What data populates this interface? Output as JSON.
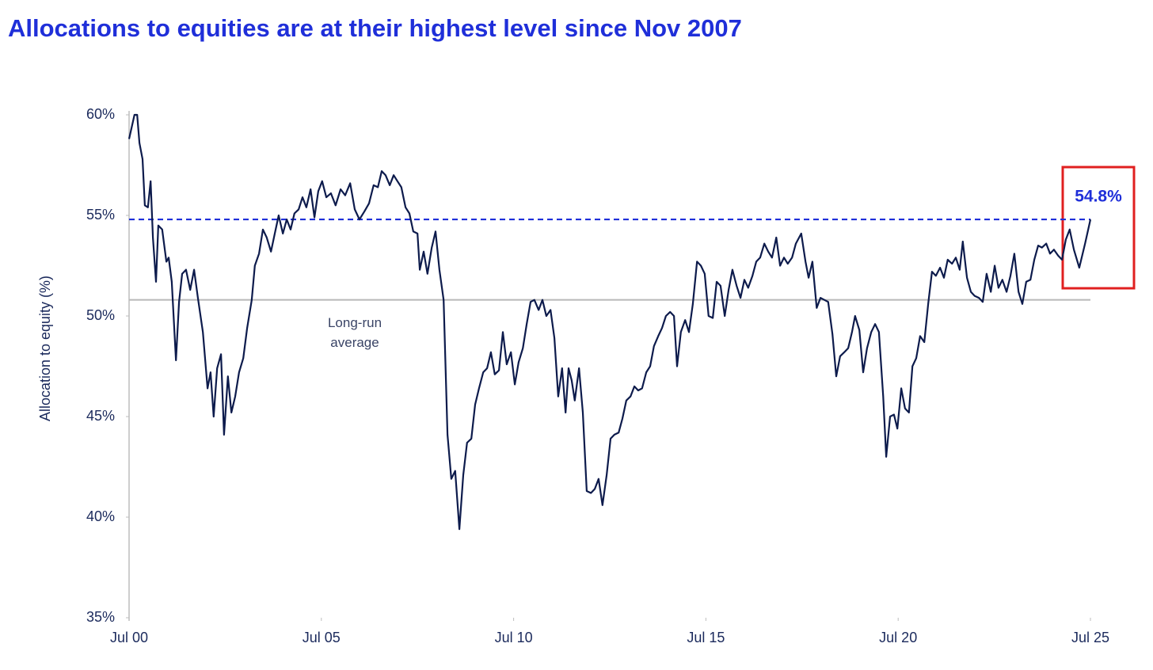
{
  "chart_data": {
    "type": "line",
    "title": "Allocations to equities are at their highest level since Nov 2007",
    "y_label": "Allocation to equity (%)",
    "xlim": [
      2000.5,
      2025.5
    ],
    "xticks": [
      {
        "value": 2000.5,
        "label": "Jul 00"
      },
      {
        "value": 2005.5,
        "label": "Jul 05"
      },
      {
        "value": 2010.5,
        "label": "Jul 10"
      },
      {
        "value": 2015.5,
        "label": "Jul 15"
      },
      {
        "value": 2020.5,
        "label": "Jul 20"
      },
      {
        "value": 2025.5,
        "label": "Jul 25"
      }
    ],
    "ylim": [
      35,
      60
    ],
    "yticks": [
      {
        "value": 35,
        "label": "35%"
      },
      {
        "value": 40,
        "label": "40%"
      },
      {
        "value": 45,
        "label": "45%"
      },
      {
        "value": 50,
        "label": "50%"
      },
      {
        "value": 55,
        "label": "55%"
      },
      {
        "value": 60,
        "label": "60%"
      }
    ],
    "grid": false,
    "average_line": {
      "value": 50.8,
      "label": [
        "Long-run",
        "average"
      ],
      "color": "#b8b8b8"
    },
    "latest_line": {
      "value": 54.8,
      "label": "54.8%",
      "color": "#1f2fd9"
    },
    "series": [
      {
        "name": "Allocation to equity",
        "color": "#0d1b4c",
        "x": [
          2000.5,
          2000.64,
          2000.71,
          2000.77,
          2000.85,
          2000.91,
          2000.99,
          2001.06,
          2001.12,
          2001.2,
          2001.26,
          2001.36,
          2001.47,
          2001.53,
          2001.61,
          2001.72,
          2001.8,
          2001.88,
          2001.98,
          2002.09,
          2002.19,
          2002.29,
          2002.42,
          2002.54,
          2002.62,
          2002.7,
          2002.79,
          2002.89,
          2002.97,
          2003.07,
          2003.16,
          2003.26,
          2003.36,
          2003.47,
          2003.57,
          2003.69,
          2003.77,
          2003.88,
          2003.98,
          2004.08,
          2004.19,
          2004.29,
          2004.39,
          2004.5,
          2004.6,
          2004.7,
          2004.8,
          2004.91,
          2005.01,
          2005.11,
          2005.22,
          2005.32,
          2005.42,
          2005.52,
          2005.63,
          2005.75,
          2005.87,
          2006.0,
          2006.12,
          2006.25,
          2006.37,
          2006.49,
          2006.62,
          2006.74,
          2006.86,
          2006.97,
          2007.07,
          2007.17,
          2007.28,
          2007.38,
          2007.48,
          2007.58,
          2007.69,
          2007.79,
          2007.89,
          2008.0,
          2008.06,
          2008.16,
          2008.26,
          2008.37,
          2008.47,
          2008.57,
          2008.68,
          2008.78,
          2008.88,
          2008.98,
          2009.09,
          2009.19,
          2009.29,
          2009.4,
          2009.5,
          2009.6,
          2009.71,
          2009.81,
          2009.91,
          2010.01,
          2010.12,
          2010.22,
          2010.32,
          2010.43,
          2010.53,
          2010.63,
          2010.74,
          2010.84,
          2010.94,
          2011.04,
          2011.15,
          2011.25,
          2011.35,
          2011.46,
          2011.56,
          2011.66,
          2011.76,
          2011.85,
          2011.93,
          2012.01,
          2012.09,
          2012.2,
          2012.3,
          2012.4,
          2012.51,
          2012.61,
          2012.71,
          2012.81,
          2012.92,
          2013.02,
          2013.12,
          2013.23,
          2013.33,
          2013.43,
          2013.54,
          2013.64,
          2013.74,
          2013.84,
          2013.95,
          2014.05,
          2014.15,
          2014.26,
          2014.36,
          2014.46,
          2014.57,
          2014.67,
          2014.75,
          2014.85,
          2014.96,
          2015.06,
          2015.16,
          2015.27,
          2015.37,
          2015.47,
          2015.57,
          2015.68,
          2015.78,
          2015.88,
          2015.99,
          2016.09,
          2016.19,
          2016.3,
          2016.4,
          2016.5,
          2016.6,
          2016.71,
          2016.81,
          2016.91,
          2017.02,
          2017.12,
          2017.22,
          2017.33,
          2017.43,
          2017.53,
          2017.63,
          2017.74,
          2017.84,
          2017.98,
          2018.09,
          2018.17,
          2018.27,
          2018.38,
          2018.48,
          2018.58,
          2018.68,
          2018.79,
          2018.89,
          2018.99,
          2019.1,
          2019.2,
          2019.3,
          2019.38,
          2019.49,
          2019.59,
          2019.69,
          2019.8,
          2019.9,
          2020.0,
          2020.11,
          2020.19,
          2020.29,
          2020.39,
          2020.48,
          2020.58,
          2020.68,
          2020.78,
          2020.87,
          2020.97,
          2021.07,
          2021.18,
          2021.28,
          2021.38,
          2021.48,
          2021.59,
          2021.69,
          2021.79,
          2021.9,
          2022.0,
          2022.1,
          2022.18,
          2022.29,
          2022.39,
          2022.49,
          2022.6,
          2022.7,
          2022.8,
          2022.91,
          2023.01,
          2023.11,
          2023.21,
          2023.32,
          2023.42,
          2023.52,
          2023.63,
          2023.73,
          2023.83,
          2023.94,
          2024.04,
          2024.14,
          2024.24,
          2024.35,
          2024.45,
          2024.55,
          2024.66,
          2024.76,
          2024.86,
          2024.96,
          2025.07,
          2025.21,
          2025.36,
          2025.5
        ],
        "values": [
          58.8,
          60.0,
          60.0,
          58.6,
          57.8,
          55.5,
          55.4,
          56.7,
          53.9,
          51.7,
          54.5,
          54.3,
          52.7,
          52.9,
          51.7,
          47.8,
          50.7,
          52.1,
          52.3,
          51.3,
          52.3,
          50.9,
          49.2,
          46.4,
          47.2,
          45.0,
          47.4,
          48.1,
          44.1,
          47.0,
          45.2,
          46.0,
          47.2,
          47.9,
          49.4,
          50.8,
          52.5,
          53.1,
          54.3,
          53.9,
          53.2,
          54.1,
          55.0,
          54.1,
          54.8,
          54.3,
          55.1,
          55.3,
          55.9,
          55.4,
          56.3,
          54.9,
          56.2,
          56.7,
          55.9,
          56.1,
          55.5,
          56.3,
          56.0,
          56.6,
          55.3,
          54.8,
          55.2,
          55.6,
          56.5,
          56.4,
          57.2,
          57.0,
          56.5,
          57.0,
          56.7,
          56.4,
          55.4,
          55.1,
          54.2,
          54.1,
          52.3,
          53.2,
          52.1,
          53.4,
          54.2,
          52.3,
          50.8,
          44.1,
          41.9,
          42.3,
          39.4,
          42.1,
          43.7,
          43.9,
          45.6,
          46.4,
          47.2,
          47.4,
          48.2,
          47.1,
          47.3,
          49.2,
          47.6,
          48.2,
          46.6,
          47.7,
          48.4,
          49.6,
          50.7,
          50.8,
          50.3,
          50.8,
          50.0,
          50.3,
          48.9,
          46.0,
          47.4,
          45.2,
          47.4,
          46.8,
          45.8,
          47.4,
          45.2,
          41.3,
          41.2,
          41.4,
          41.9,
          40.6,
          42.1,
          43.9,
          44.1,
          44.2,
          44.9,
          45.8,
          46.0,
          46.5,
          46.3,
          46.4,
          47.2,
          47.5,
          48.5,
          49.0,
          49.4,
          50.0,
          50.2,
          50.0,
          47.5,
          49.2,
          49.8,
          49.2,
          50.6,
          52.7,
          52.5,
          52.1,
          50.0,
          49.9,
          51.7,
          51.5,
          50.0,
          51.3,
          52.3,
          51.5,
          50.9,
          51.8,
          51.4,
          52.0,
          52.7,
          52.9,
          53.6,
          53.2,
          52.9,
          53.9,
          52.5,
          52.9,
          52.6,
          52.9,
          53.6,
          54.1,
          52.7,
          51.9,
          52.7,
          50.4,
          50.9,
          50.8,
          50.7,
          49.1,
          47.0,
          48.0,
          48.2,
          48.4,
          49.2,
          50.0,
          49.3,
          47.2,
          48.4,
          49.2,
          49.6,
          49.2,
          46.0,
          43.0,
          45.0,
          45.1,
          44.4,
          46.4,
          45.4,
          45.2,
          47.5,
          47.9,
          49.0,
          48.7,
          50.6,
          52.2,
          52.0,
          52.4,
          51.9,
          52.8,
          52.6,
          52.9,
          52.3,
          53.7,
          51.9,
          51.2,
          51.0,
          50.9,
          50.7,
          52.1,
          51.2,
          52.5,
          51.4,
          51.8,
          51.2,
          52.0,
          53.1,
          51.2,
          50.6,
          51.7,
          51.8,
          52.8,
          53.5,
          53.4,
          53.6,
          53.1,
          53.3,
          53.0,
          52.8,
          53.8,
          54.3,
          53.3,
          52.4,
          53.6,
          54.8
        ]
      }
    ]
  }
}
